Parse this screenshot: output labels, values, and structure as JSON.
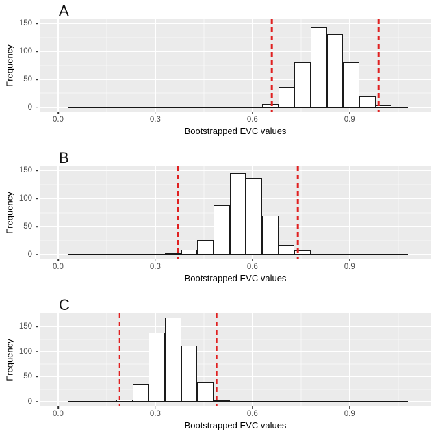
{
  "figure": {
    "background": "#ffffff",
    "x_axis_title": "Bootstrapped EVC values",
    "y_axis_title": "Frequency",
    "panel_labels": [
      "A",
      "B",
      "C"
    ]
  },
  "colors": {
    "panel_background": "#ebebeb",
    "gridline": "#ffffff",
    "bar_fill": "#ffffff",
    "bar_stroke": "#1a1a1a",
    "ci_line_red": "#e02020",
    "tick_label_text": "#4d4d4d",
    "axis_title_text": "#000000"
  },
  "chart_data": [
    {
      "type": "bar",
      "subtype": "histogram",
      "panel_label": "A",
      "xlabel": "Bootstrapped EVC values",
      "ylabel": "Frequency",
      "x_ticks": [
        0.0,
        0.3,
        0.6,
        0.9
      ],
      "x_tick_labels": [
        "0.0",
        "0.3",
        "0.6",
        "0.9"
      ],
      "x_minor_ticks": [
        0.15,
        0.45,
        0.75,
        1.05
      ],
      "y_ticks": [
        0,
        50,
        100,
        150
      ],
      "y_tick_labels": [
        "0",
        "50",
        "100",
        "150"
      ],
      "xlim": [
        -0.057,
        1.152
      ],
      "ylim": [
        -7.5,
        157.5
      ],
      "grid": true,
      "bin_width": 0.05,
      "bins": [
        {
          "x0": 0.63,
          "count": 6
        },
        {
          "x0": 0.68,
          "count": 36
        },
        {
          "x0": 0.73,
          "count": 80
        },
        {
          "x0": 0.78,
          "count": 143
        },
        {
          "x0": 0.83,
          "count": 131
        },
        {
          "x0": 0.88,
          "count": 80
        },
        {
          "x0": 0.93,
          "count": 19
        },
        {
          "x0": 0.98,
          "count": 4
        }
      ],
      "ci_dashed_lines": [
        0.66,
        0.99
      ],
      "baseline_extent": [
        0.03,
        1.08
      ]
    },
    {
      "type": "bar",
      "subtype": "histogram",
      "panel_label": "B",
      "xlabel": "Bootstrapped EVC values",
      "ylabel": "Frequency",
      "x_ticks": [
        0.0,
        0.3,
        0.6,
        0.9
      ],
      "x_tick_labels": [
        "0.0",
        "0.3",
        "0.6",
        "0.9"
      ],
      "x_minor_ticks": [
        0.15,
        0.45,
        0.75,
        1.05
      ],
      "y_ticks": [
        0,
        50,
        100,
        150
      ],
      "y_tick_labels": [
        "0",
        "50",
        "100",
        "150"
      ],
      "xlim": [
        -0.057,
        1.152
      ],
      "ylim": [
        -7.5,
        157.5
      ],
      "grid": true,
      "bin_width": 0.05,
      "bins": [
        {
          "x0": 0.33,
          "count": 2
        },
        {
          "x0": 0.38,
          "count": 9
        },
        {
          "x0": 0.43,
          "count": 26
        },
        {
          "x0": 0.48,
          "count": 88
        },
        {
          "x0": 0.53,
          "count": 145
        },
        {
          "x0": 0.58,
          "count": 137
        },
        {
          "x0": 0.63,
          "count": 69
        },
        {
          "x0": 0.68,
          "count": 17
        },
        {
          "x0": 0.73,
          "count": 7
        }
      ],
      "ci_dashed_lines": [
        0.37,
        0.74
      ],
      "baseline_extent": [
        0.03,
        1.08
      ]
    },
    {
      "type": "bar",
      "subtype": "histogram",
      "panel_label": "C",
      "xlabel": "Bootstrapped EVC values",
      "ylabel": "Frequency",
      "x_ticks": [
        0.0,
        0.3,
        0.6,
        0.9
      ],
      "x_tick_labels": [
        "0.0",
        "0.3",
        "0.6",
        "0.9"
      ],
      "x_minor_ticks": [
        0.15,
        0.45,
        0.75,
        1.05
      ],
      "y_ticks": [
        0,
        50,
        100,
        150
      ],
      "y_tick_labels": [
        "0",
        "50",
        "100",
        "150"
      ],
      "xlim": [
        -0.057,
        1.152
      ],
      "ylim": [
        -8.4,
        176.4
      ],
      "grid": true,
      "bin_width": 0.05,
      "bins": [
        {
          "x0": 0.13,
          "count": 1
        },
        {
          "x0": 0.18,
          "count": 4
        },
        {
          "x0": 0.23,
          "count": 36
        },
        {
          "x0": 0.28,
          "count": 138
        },
        {
          "x0": 0.33,
          "count": 168
        },
        {
          "x0": 0.38,
          "count": 112
        },
        {
          "x0": 0.43,
          "count": 39
        },
        {
          "x0": 0.48,
          "count": 3
        }
      ],
      "ci_dashed_lines": [
        0.19,
        0.49
      ],
      "baseline_extent": [
        0.03,
        1.08
      ]
    }
  ]
}
